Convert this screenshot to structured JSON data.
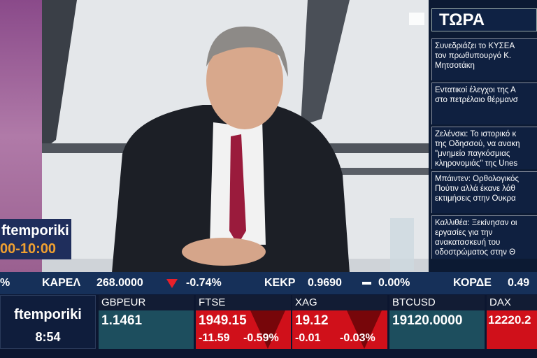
{
  "show": {
    "name": "ftemporiki",
    "time_slot": "00-10:00"
  },
  "news_panel": {
    "title": "ΤΩΡΑ",
    "items": [
      "Συνεδριάζει το ΚΥΣΕΑ\nτον πρωθυπουργό Κ.\nΜητσοτάκη",
      "Εντατικοί έλεγχοι της Α\nστο πετρέλαιο θέρμανσ",
      "Ζελένσκι: Το ιστορικό κ\nτης Οδησσού, να ανακη\n\"μνημείο παγκόσμιας\nκληρονομιάς\" της Unes",
      "Μπάιντεν: Ορθολογικός\nΠούτιν αλλά έκανε λάθ\nεκτιμήσεις στην Ουκρα",
      "Καλλιθέα: Ξεκίνησαν οι\nεργασίες για την\nανακατασκευή του\nοδοστρώματος στην Θ"
    ]
  },
  "ticker": {
    "lead": "%",
    "items": [
      {
        "symbol": "ΚΑΡΕΛ",
        "price": "268.0000",
        "direction": "down",
        "change": "-0.74%"
      },
      {
        "symbol": "ΚΕΚΡ",
        "price": "0.9690",
        "direction": "flat",
        "change": "0.00%"
      },
      {
        "symbol": "ΚΟΡΔΕ",
        "price": "0.49"
      }
    ]
  },
  "clock": {
    "channel": "ftemporiki",
    "time": "8:54"
  },
  "quotes": [
    {
      "symbol": "GBPEUR",
      "price": "1.1461",
      "direction": "flat"
    },
    {
      "symbol": "FTSE",
      "price": "1949.15",
      "change": "-11.59",
      "pct": "-0.59%",
      "direction": "down"
    },
    {
      "symbol": "XAG",
      "price": "19.12",
      "change": "-0.01",
      "pct": "-0.03%",
      "direction": "down"
    },
    {
      "symbol": "BTCUSD",
      "price": "19120.0000",
      "direction": "flat"
    },
    {
      "symbol": "DAX",
      "price": "12220.2",
      "direction": "down"
    }
  ],
  "colors": {
    "down": "#d0101a",
    "flat": "#1d4e5e",
    "navy": "#163059",
    "accent_orange": "#f0a030"
  }
}
